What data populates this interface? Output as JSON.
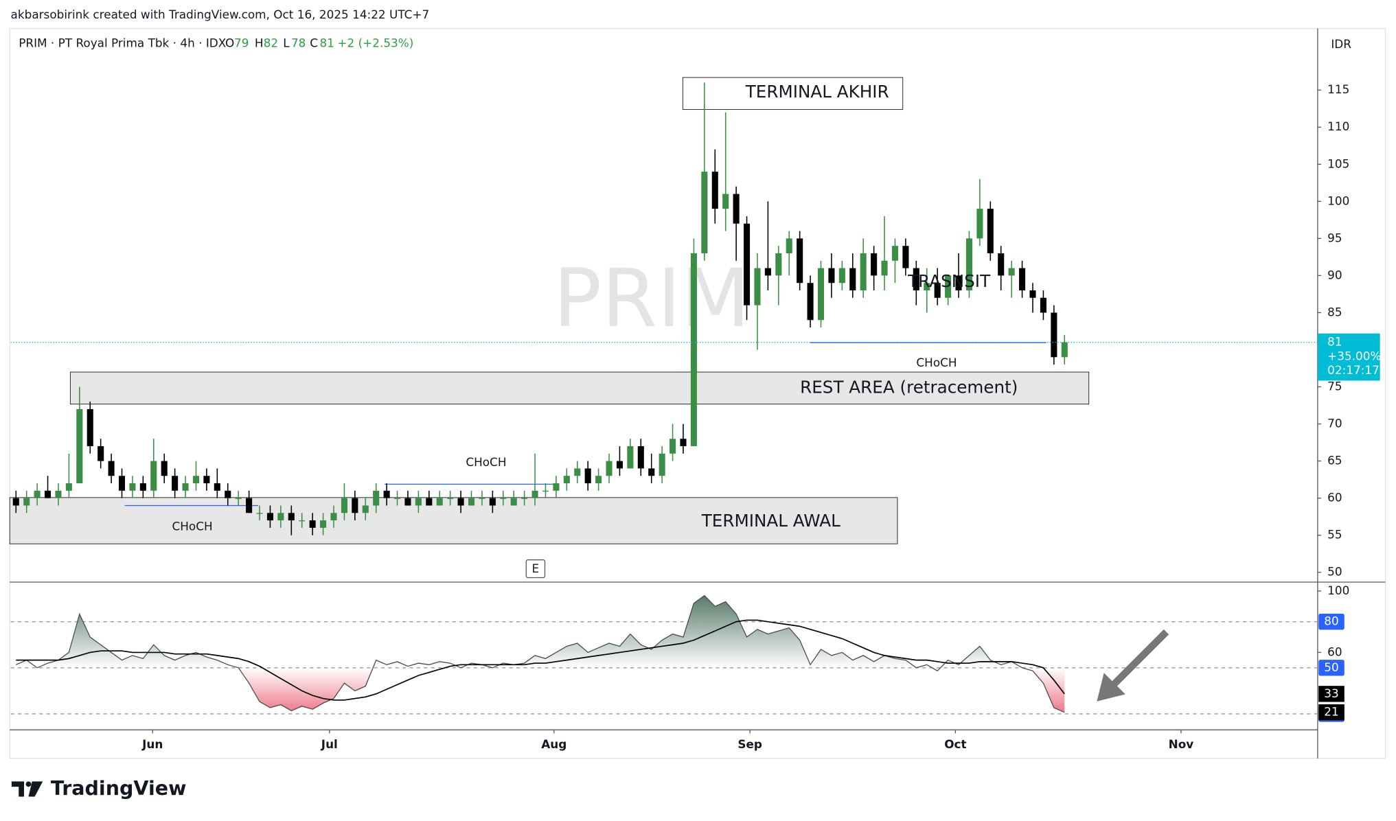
{
  "header": {
    "credit": "akbarsobirink created with TradingView.com, Oct 16, 2025 14:22 UTC+7",
    "logo": "TradingView"
  },
  "chart_data": [
    {
      "type": "candlestick",
      "title": "PRIM · PT Royal Prima Tbk · 4h · IDX",
      "watermark": "PRIM",
      "currency": "IDR",
      "legend": {
        "open_label": "O",
        "high_label": "H",
        "low_label": "L",
        "close_label": "C",
        "change": "+2 (+2.53%)"
      },
      "last_price": {
        "change": "+35.00%",
        "countdown": "02:17:17"
      },
      "up_color": "#3b8f45",
      "down_color": "#000000",
      "open": [
        60,
        59,
        60,
        61,
        60,
        61,
        62,
        72,
        67,
        65,
        63,
        61,
        62,
        61,
        65,
        63,
        61,
        62,
        63,
        62,
        61,
        60,
        60,
        58,
        58,
        57,
        58,
        57,
        57,
        56,
        57,
        58,
        60,
        58,
        59,
        61,
        60,
        60,
        59,
        60,
        59,
        60,
        60,
        59,
        60,
        60,
        60,
        59,
        60,
        60,
        61,
        61,
        62,
        63,
        64,
        62,
        63,
        65,
        64,
        67,
        64,
        63,
        66,
        68,
        67,
        93,
        104,
        99,
        101,
        97,
        86,
        91,
        90,
        93,
        95,
        89,
        84,
        91,
        89,
        91,
        88,
        93,
        90,
        92,
        94,
        91,
        88,
        89,
        87,
        90,
        88,
        95,
        99,
        93,
        90,
        91,
        88,
        87,
        85,
        79
      ],
      "high": [
        61,
        61,
        62,
        63,
        62,
        66,
        75,
        73,
        68,
        66,
        64,
        63,
        63,
        68,
        66,
        64,
        63,
        65,
        64,
        64,
        62,
        61,
        61,
        59,
        59,
        59,
        59,
        58,
        58,
        58,
        59,
        62,
        61,
        60,
        62,
        62,
        61,
        61,
        61,
        61,
        61,
        61,
        61,
        61,
        61,
        61,
        61,
        61,
        61,
        66,
        62,
        63,
        64,
        65,
        65,
        64,
        66,
        67,
        68,
        68,
        66,
        67,
        70,
        70,
        95,
        116,
        107,
        112,
        102,
        98,
        93,
        100,
        94,
        96,
        96,
        90,
        92,
        93,
        92,
        93,
        95,
        94,
        98,
        95,
        95,
        92,
        91,
        91,
        90,
        93,
        96,
        103,
        100,
        94,
        92,
        92,
        89,
        88,
        86,
        82
      ],
      "low": [
        58,
        58,
        59,
        60,
        59,
        60,
        62,
        66,
        64,
        62,
        60,
        60,
        60,
        60,
        62,
        60,
        60,
        61,
        61,
        60,
        59,
        59,
        58,
        57,
        56,
        56,
        55,
        56,
        55,
        55,
        56,
        57,
        57,
        57,
        58,
        59,
        59,
        59,
        58,
        59,
        59,
        59,
        58,
        59,
        59,
        58,
        59,
        59,
        59,
        59,
        60,
        60,
        61,
        62,
        61,
        61,
        62,
        63,
        64,
        63,
        62,
        62,
        65,
        66,
        67,
        92,
        97,
        96,
        92,
        84,
        80,
        88,
        86,
        90,
        88,
        83,
        83,
        87,
        88,
        87,
        87,
        88,
        88,
        89,
        90,
        86,
        85,
        86,
        86,
        87,
        87,
        94,
        92,
        88,
        87,
        87,
        85,
        84,
        78,
        78
      ],
      "close": [
        59,
        60,
        61,
        60,
        61,
        62,
        72,
        67,
        65,
        63,
        61,
        62,
        61,
        65,
        63,
        61,
        62,
        63,
        62,
        61,
        60,
        60,
        58,
        58,
        57,
        58,
        57,
        57,
        56,
        57,
        58,
        60,
        58,
        59,
        61,
        60,
        60,
        59,
        60,
        59,
        60,
        60,
        59,
        60,
        60,
        59,
        60,
        60,
        60,
        61,
        61,
        62,
        63,
        64,
        62,
        63,
        65,
        64,
        67,
        64,
        63,
        66,
        68,
        67,
        93,
        104,
        99,
        101,
        97,
        86,
        91,
        90,
        93,
        95,
        89,
        84,
        91,
        89,
        91,
        88,
        93,
        90,
        92,
        94,
        91,
        88,
        89,
        87,
        90,
        88,
        95,
        99,
        93,
        90,
        91,
        88,
        87,
        85,
        79,
        81
      ],
      "xlim": [
        -0.5,
        122.9
      ],
      "xticks": [
        {
          "value": 12.9,
          "label": "Jun"
        },
        {
          "value": 29.6,
          "label": "Jul"
        },
        {
          "value": 50.8,
          "label": "Aug"
        },
        {
          "value": 69.3,
          "label": "Sep"
        },
        {
          "value": 88.7,
          "label": "Oct"
        },
        {
          "value": 110,
          "label": "Nov"
        }
      ],
      "ylim": [
        48.8,
        123.3
      ],
      "yticks": [
        50,
        55,
        60,
        65,
        70,
        75,
        80,
        85,
        90,
        95,
        100,
        105,
        110,
        115
      ],
      "annotations": {
        "terminal_akhir": "TERMINAL AKHIR",
        "rest_area": "REST AREA (retracement)",
        "terminal_awal": "TERMINAL AWAL",
        "transit": "TRASNSIT",
        "choch": [
          "CHoCH",
          "CHoCH",
          "CHoCH"
        ],
        "event": "E"
      }
    },
    {
      "type": "line",
      "series": [
        {
          "color": "#4a4a4a",
          "values": [
            52,
            55,
            50,
            53,
            55,
            60,
            85,
            70,
            65,
            60,
            55,
            58,
            56,
            65,
            58,
            55,
            58,
            60,
            57,
            55,
            52,
            50,
            40,
            28,
            24,
            26,
            22,
            25,
            23,
            27,
            30,
            40,
            35,
            38,
            55,
            52,
            54,
            51,
            53,
            52,
            54,
            53,
            50,
            53,
            52,
            50,
            53,
            52,
            53,
            58,
            56,
            60,
            64,
            66,
            60,
            63,
            66,
            64,
            72,
            65,
            62,
            68,
            72,
            70,
            92,
            97,
            90,
            93,
            85,
            70,
            75,
            72,
            74,
            76,
            68,
            52,
            62,
            58,
            60,
            55,
            58,
            54,
            58,
            56,
            55,
            50,
            52,
            48,
            55,
            52,
            58,
            64,
            55,
            52,
            54,
            50,
            48,
            40,
            24,
            21
          ]
        },
        {
          "color": "#000000",
          "values": [
            55,
            55,
            55,
            55,
            55,
            56,
            58,
            60,
            61,
            61,
            61,
            60,
            60,
            60,
            60,
            59,
            59,
            59,
            59,
            58,
            57,
            56,
            54,
            51,
            47,
            43,
            39,
            35,
            32,
            30,
            29,
            29,
            30,
            31,
            33,
            36,
            39,
            42,
            45,
            47,
            49,
            51,
            52,
            52,
            52,
            52,
            52,
            52,
            52,
            53,
            53,
            54,
            55,
            56,
            57,
            58,
            59,
            60,
            61,
            62,
            63,
            64,
            65,
            66,
            68,
            71,
            74,
            77,
            80,
            81,
            81,
            80,
            79,
            78,
            77,
            75,
            73,
            71,
            69,
            66,
            63,
            60,
            58,
            57,
            56,
            55,
            55,
            54,
            53,
            53,
            53,
            54,
            54,
            54,
            54,
            53,
            52,
            50,
            42,
            33
          ]
        }
      ],
      "ylim": [
        9.6,
        105.2
      ],
      "yticks": [
        100,
        60
      ],
      "levels": [
        80,
        50,
        20
      ]
    }
  ]
}
